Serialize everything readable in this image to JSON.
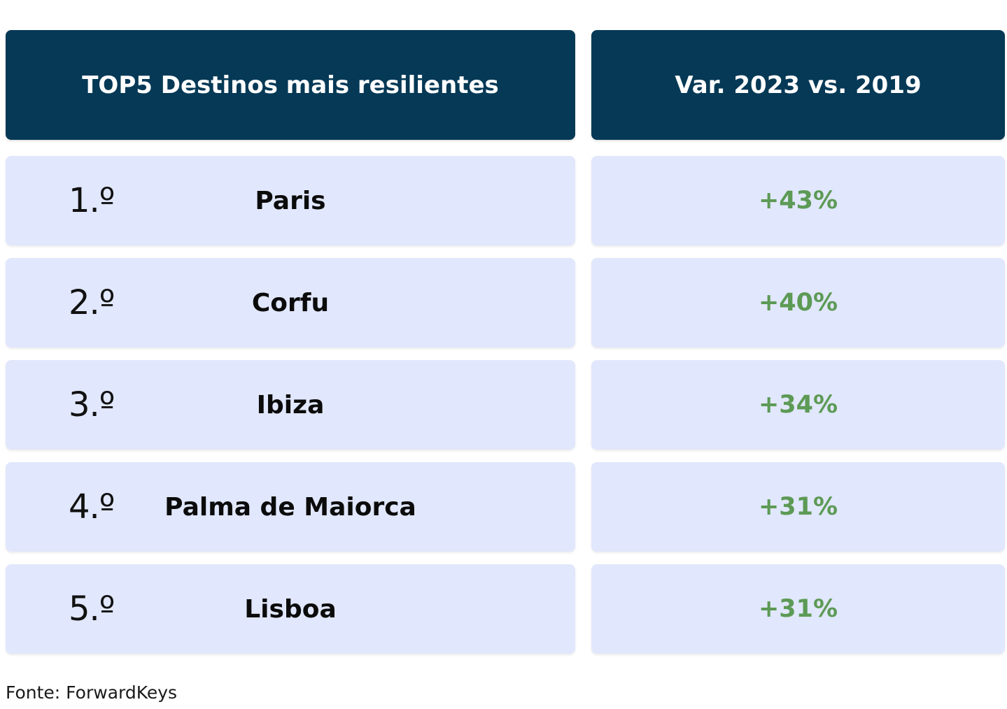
{
  "chart_data": {
    "type": "table",
    "columns": [
      "TOP5 Destinos mais resilientes",
      "Var. 2023 vs. 2019"
    ],
    "rows": [
      {
        "rank": "1.º",
        "destination": "Paris",
        "variation": "+43%",
        "value": 43
      },
      {
        "rank": "2.º",
        "destination": "Corfu",
        "variation": "+40%",
        "value": 40
      },
      {
        "rank": "3.º",
        "destination": "Ibiza",
        "variation": "+34%",
        "value": 34
      },
      {
        "rank": "4.º",
        "destination": "Palma de Maiorca",
        "variation": "+31%",
        "value": 31
      },
      {
        "rank": "5.º",
        "destination": "Lisboa",
        "variation": "+31%",
        "value": 31
      }
    ],
    "source": "Fonte: ForwardKeys"
  },
  "colors": {
    "header_bg": "#053956",
    "row_bg": "#e1e7fc",
    "positive": "#5c9a55"
  }
}
